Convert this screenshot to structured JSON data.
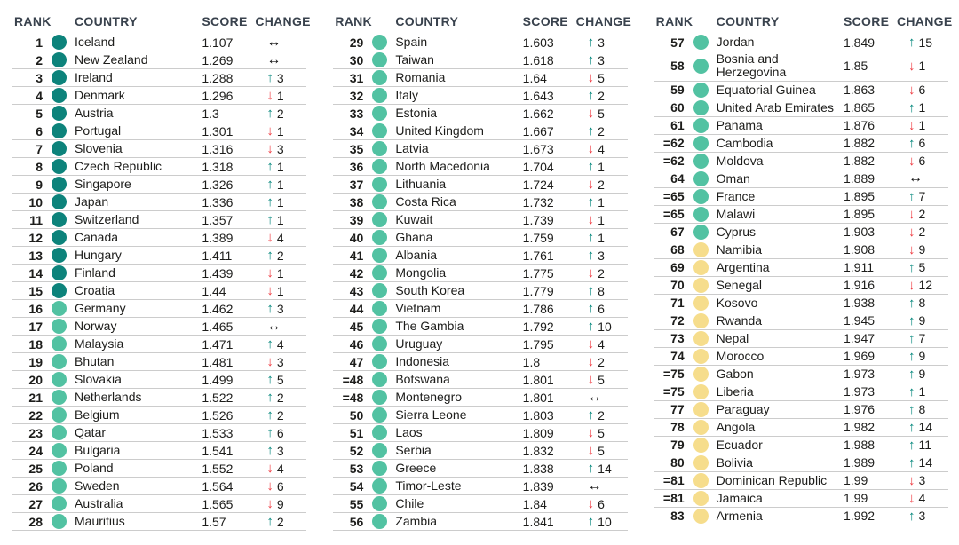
{
  "colors": {
    "tier_dark": "#0d837b",
    "tier_green": "#52c2a2",
    "tier_yellow": "#f6dd8c",
    "up_arrow": "#00857a",
    "down_arrow": "#ef3a40",
    "neutral_arrow": "#111111",
    "header_text": "#39424d",
    "row_divider": "#cccccc"
  },
  "chart_data": {
    "type": "table",
    "columns": [
      "RANK",
      "COUNTRY",
      "SCORE",
      "CHANGE"
    ],
    "legend_note": "dot tiers: dark=most peaceful, green=high, yellow=medium; arrows: up/down = rank change, same = no change",
    "groups": [
      {
        "rows": [
          {
            "rank": "1",
            "country": "Iceland",
            "score": "1.107",
            "tier": "dark",
            "dir": "same",
            "delta": ""
          },
          {
            "rank": "2",
            "country": "New Zealand",
            "score": "1.269",
            "tier": "dark",
            "dir": "same",
            "delta": ""
          },
          {
            "rank": "3",
            "country": "Ireland",
            "score": "1.288",
            "tier": "dark",
            "dir": "up",
            "delta": "3"
          },
          {
            "rank": "4",
            "country": "Denmark",
            "score": "1.296",
            "tier": "dark",
            "dir": "down",
            "delta": "1"
          },
          {
            "rank": "5",
            "country": "Austria",
            "score": "1.3",
            "tier": "dark",
            "dir": "up",
            "delta": "2"
          },
          {
            "rank": "6",
            "country": "Portugal",
            "score": "1.301",
            "tier": "dark",
            "dir": "down",
            "delta": "1"
          },
          {
            "rank": "7",
            "country": "Slovenia",
            "score": "1.316",
            "tier": "dark",
            "dir": "down",
            "delta": "3"
          },
          {
            "rank": "8",
            "country": "Czech Republic",
            "score": "1.318",
            "tier": "dark",
            "dir": "up",
            "delta": "1"
          },
          {
            "rank": "9",
            "country": "Singapore",
            "score": "1.326",
            "tier": "dark",
            "dir": "up",
            "delta": "1"
          },
          {
            "rank": "10",
            "country": "Japan",
            "score": "1.336",
            "tier": "dark",
            "dir": "up",
            "delta": "1"
          },
          {
            "rank": "11",
            "country": "Switzerland",
            "score": "1.357",
            "tier": "dark",
            "dir": "up",
            "delta": "1"
          },
          {
            "rank": "12",
            "country": "Canada",
            "score": "1.389",
            "tier": "dark",
            "dir": "down",
            "delta": "4"
          },
          {
            "rank": "13",
            "country": "Hungary",
            "score": "1.411",
            "tier": "dark",
            "dir": "up",
            "delta": "2"
          },
          {
            "rank": "14",
            "country": "Finland",
            "score": "1.439",
            "tier": "dark",
            "dir": "down",
            "delta": "1"
          },
          {
            "rank": "15",
            "country": "Croatia",
            "score": "1.44",
            "tier": "dark",
            "dir": "down",
            "delta": "1"
          },
          {
            "rank": "16",
            "country": "Germany",
            "score": "1.462",
            "tier": "green",
            "dir": "up",
            "delta": "3"
          },
          {
            "rank": "17",
            "country": "Norway",
            "score": "1.465",
            "tier": "green",
            "dir": "same",
            "delta": ""
          },
          {
            "rank": "18",
            "country": "Malaysia",
            "score": "1.471",
            "tier": "green",
            "dir": "up",
            "delta": "4"
          },
          {
            "rank": "19",
            "country": "Bhutan",
            "score": "1.481",
            "tier": "green",
            "dir": "down",
            "delta": "3"
          },
          {
            "rank": "20",
            "country": "Slovakia",
            "score": "1.499",
            "tier": "green",
            "dir": "up",
            "delta": "5"
          },
          {
            "rank": "21",
            "country": "Netherlands",
            "score": "1.522",
            "tier": "green",
            "dir": "up",
            "delta": "2"
          },
          {
            "rank": "22",
            "country": "Belgium",
            "score": "1.526",
            "tier": "green",
            "dir": "up",
            "delta": "2"
          },
          {
            "rank": "23",
            "country": "Qatar",
            "score": "1.533",
            "tier": "green",
            "dir": "up",
            "delta": "6"
          },
          {
            "rank": "24",
            "country": "Bulgaria",
            "score": "1.541",
            "tier": "green",
            "dir": "up",
            "delta": "3"
          },
          {
            "rank": "25",
            "country": "Poland",
            "score": "1.552",
            "tier": "green",
            "dir": "down",
            "delta": "4"
          },
          {
            "rank": "26",
            "country": "Sweden",
            "score": "1.564",
            "tier": "green",
            "dir": "down",
            "delta": "6"
          },
          {
            "rank": "27",
            "country": "Australia",
            "score": "1.565",
            "tier": "green",
            "dir": "down",
            "delta": "9"
          },
          {
            "rank": "28",
            "country": "Mauritius",
            "score": "1.57",
            "tier": "green",
            "dir": "up",
            "delta": "2"
          }
        ]
      },
      {
        "rows": [
          {
            "rank": "29",
            "country": "Spain",
            "score": "1.603",
            "tier": "green",
            "dir": "up",
            "delta": "3"
          },
          {
            "rank": "30",
            "country": "Taiwan",
            "score": "1.618",
            "tier": "green",
            "dir": "up",
            "delta": "3"
          },
          {
            "rank": "31",
            "country": "Romania",
            "score": "1.64",
            "tier": "green",
            "dir": "down",
            "delta": "5"
          },
          {
            "rank": "32",
            "country": "Italy",
            "score": "1.643",
            "tier": "green",
            "dir": "up",
            "delta": "2"
          },
          {
            "rank": "33",
            "country": "Estonia",
            "score": "1.662",
            "tier": "green",
            "dir": "down",
            "delta": "5"
          },
          {
            "rank": "34",
            "country": "United Kingdom",
            "score": "1.667",
            "tier": "green",
            "dir": "up",
            "delta": "2"
          },
          {
            "rank": "35",
            "country": "Latvia",
            "score": "1.673",
            "tier": "green",
            "dir": "down",
            "delta": "4"
          },
          {
            "rank": "36",
            "country": "North Macedonia",
            "score": "1.704",
            "tier": "green",
            "dir": "up",
            "delta": "1"
          },
          {
            "rank": "37",
            "country": "Lithuania",
            "score": "1.724",
            "tier": "green",
            "dir": "down",
            "delta": "2"
          },
          {
            "rank": "38",
            "country": "Costa Rica",
            "score": "1.732",
            "tier": "green",
            "dir": "up",
            "delta": "1"
          },
          {
            "rank": "39",
            "country": "Kuwait",
            "score": "1.739",
            "tier": "green",
            "dir": "down",
            "delta": "1"
          },
          {
            "rank": "40",
            "country": "Ghana",
            "score": "1.759",
            "tier": "green",
            "dir": "up",
            "delta": "1"
          },
          {
            "rank": "41",
            "country": "Albania",
            "score": "1.761",
            "tier": "green",
            "dir": "up",
            "delta": "3"
          },
          {
            "rank": "42",
            "country": "Mongolia",
            "score": "1.775",
            "tier": "green",
            "dir": "down",
            "delta": "2"
          },
          {
            "rank": "43",
            "country": "South Korea",
            "score": "1.779",
            "tier": "green",
            "dir": "up",
            "delta": "8"
          },
          {
            "rank": "44",
            "country": "Vietnam",
            "score": "1.786",
            "tier": "green",
            "dir": "up",
            "delta": "6"
          },
          {
            "rank": "45",
            "country": "The Gambia",
            "score": "1.792",
            "tier": "green",
            "dir": "up",
            "delta": "10"
          },
          {
            "rank": "46",
            "country": "Uruguay",
            "score": "1.795",
            "tier": "green",
            "dir": "down",
            "delta": "4"
          },
          {
            "rank": "47",
            "country": "Indonesia",
            "score": "1.8",
            "tier": "green",
            "dir": "down",
            "delta": "2"
          },
          {
            "rank": "=48",
            "country": "Botswana",
            "score": "1.801",
            "tier": "green",
            "dir": "down",
            "delta": "5"
          },
          {
            "rank": "=48",
            "country": "Montenegro",
            "score": "1.801",
            "tier": "green",
            "dir": "same",
            "delta": ""
          },
          {
            "rank": "50",
            "country": "Sierra Leone",
            "score": "1.803",
            "tier": "green",
            "dir": "up",
            "delta": "2"
          },
          {
            "rank": "51",
            "country": "Laos",
            "score": "1.809",
            "tier": "green",
            "dir": "down",
            "delta": "5"
          },
          {
            "rank": "52",
            "country": "Serbia",
            "score": "1.832",
            "tier": "green",
            "dir": "down",
            "delta": "5"
          },
          {
            "rank": "53",
            "country": "Greece",
            "score": "1.838",
            "tier": "green",
            "dir": "up",
            "delta": "14"
          },
          {
            "rank": "54",
            "country": "Timor-Leste",
            "score": "1.839",
            "tier": "green",
            "dir": "same",
            "delta": ""
          },
          {
            "rank": "55",
            "country": "Chile",
            "score": "1.84",
            "tier": "green",
            "dir": "down",
            "delta": "6"
          },
          {
            "rank": "56",
            "country": "Zambia",
            "score": "1.841",
            "tier": "green",
            "dir": "up",
            "delta": "10"
          }
        ]
      },
      {
        "rows": [
          {
            "rank": "57",
            "country": "Jordan",
            "score": "1.849",
            "tier": "green",
            "dir": "up",
            "delta": "15"
          },
          {
            "rank": "58",
            "country": "Bosnia and Herzegovina",
            "score": "1.85",
            "tier": "green",
            "dir": "down",
            "delta": "1"
          },
          {
            "rank": "59",
            "country": "Equatorial Guinea",
            "score": "1.863",
            "tier": "green",
            "dir": "down",
            "delta": "6"
          },
          {
            "rank": "60",
            "country": "United Arab Emirates",
            "score": "1.865",
            "tier": "green",
            "dir": "up",
            "delta": "1"
          },
          {
            "rank": "61",
            "country": "Panama",
            "score": "1.876",
            "tier": "green",
            "dir": "down",
            "delta": "1"
          },
          {
            "rank": "=62",
            "country": "Cambodia",
            "score": "1.882",
            "tier": "green",
            "dir": "up",
            "delta": "6"
          },
          {
            "rank": "=62",
            "country": "Moldova",
            "score": "1.882",
            "tier": "green",
            "dir": "down",
            "delta": "6"
          },
          {
            "rank": "64",
            "country": "Oman",
            "score": "1.889",
            "tier": "green",
            "dir": "same",
            "delta": ""
          },
          {
            "rank": "=65",
            "country": "France",
            "score": "1.895",
            "tier": "green",
            "dir": "up",
            "delta": "7"
          },
          {
            "rank": "=65",
            "country": "Malawi",
            "score": "1.895",
            "tier": "green",
            "dir": "down",
            "delta": "2"
          },
          {
            "rank": "67",
            "country": "Cyprus",
            "score": "1.903",
            "tier": "green",
            "dir": "down",
            "delta": "2"
          },
          {
            "rank": "68",
            "country": "Namibia",
            "score": "1.908",
            "tier": "yellow",
            "dir": "down",
            "delta": "9"
          },
          {
            "rank": "69",
            "country": "Argentina",
            "score": "1.911",
            "tier": "yellow",
            "dir": "up",
            "delta": "5"
          },
          {
            "rank": "70",
            "country": "Senegal",
            "score": "1.916",
            "tier": "yellow",
            "dir": "down",
            "delta": "12"
          },
          {
            "rank": "71",
            "country": "Kosovo",
            "score": "1.938",
            "tier": "yellow",
            "dir": "up",
            "delta": "8"
          },
          {
            "rank": "72",
            "country": "Rwanda",
            "score": "1.945",
            "tier": "yellow",
            "dir": "up",
            "delta": "9"
          },
          {
            "rank": "73",
            "country": "Nepal",
            "score": "1.947",
            "tier": "yellow",
            "dir": "up",
            "delta": "7"
          },
          {
            "rank": "74",
            "country": "Morocco",
            "score": "1.969",
            "tier": "yellow",
            "dir": "up",
            "delta": "9"
          },
          {
            "rank": "=75",
            "country": "Gabon",
            "score": "1.973",
            "tier": "yellow",
            "dir": "up",
            "delta": "9"
          },
          {
            "rank": "=75",
            "country": "Liberia",
            "score": "1.973",
            "tier": "yellow",
            "dir": "up",
            "delta": "1"
          },
          {
            "rank": "77",
            "country": "Paraguay",
            "score": "1.976",
            "tier": "yellow",
            "dir": "up",
            "delta": "8"
          },
          {
            "rank": "78",
            "country": "Angola",
            "score": "1.982",
            "tier": "yellow",
            "dir": "up",
            "delta": "14"
          },
          {
            "rank": "79",
            "country": "Ecuador",
            "score": "1.988",
            "tier": "yellow",
            "dir": "up",
            "delta": "11"
          },
          {
            "rank": "80",
            "country": "Bolivia",
            "score": "1.989",
            "tier": "yellow",
            "dir": "up",
            "delta": "14"
          },
          {
            "rank": "=81",
            "country": "Dominican Republic",
            "score": "1.99",
            "tier": "yellow",
            "dir": "down",
            "delta": "3"
          },
          {
            "rank": "=81",
            "country": "Jamaica",
            "score": "1.99",
            "tier": "yellow",
            "dir": "down",
            "delta": "4"
          },
          {
            "rank": "83",
            "country": "Armenia",
            "score": "1.992",
            "tier": "yellow",
            "dir": "up",
            "delta": "3"
          }
        ]
      }
    ]
  }
}
